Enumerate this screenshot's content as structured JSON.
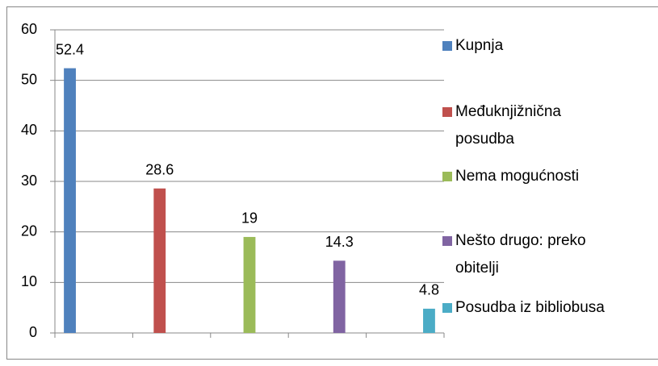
{
  "chart_data": {
    "type": "bar",
    "categories": [
      null,
      null,
      null,
      null,
      null
    ],
    "series": [
      {
        "name": "Kupnja",
        "color": "#4f81bd",
        "values": [
          52.4,
          null,
          null,
          null,
          null
        ]
      },
      {
        "name": "Međuknjižnična posudba",
        "color": "#c0504d",
        "values": [
          null,
          28.6,
          null,
          null,
          null
        ]
      },
      {
        "name": "Nema mogućnosti",
        "color": "#9bbb59",
        "values": [
          null,
          null,
          19,
          null,
          null
        ]
      },
      {
        "name": "Nešto drugo: preko obitelji",
        "color": "#8064a2",
        "values": [
          null,
          null,
          null,
          14.3,
          null
        ]
      },
      {
        "name": "Posudba iz bibliobusa",
        "color": "#4bacc6",
        "values": [
          null,
          null,
          null,
          null,
          4.8
        ]
      }
    ],
    "ylim": [
      0,
      60
    ],
    "yticks": [
      0,
      10,
      20,
      30,
      40,
      50,
      60
    ],
    "grid": true,
    "legend": "right"
  }
}
